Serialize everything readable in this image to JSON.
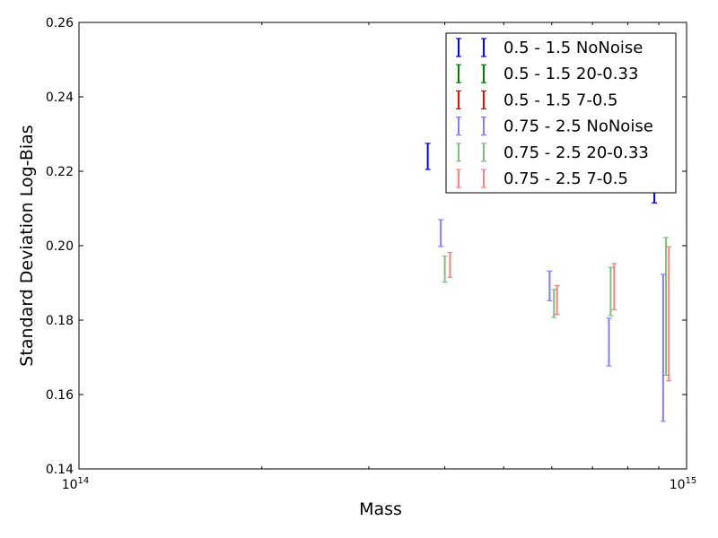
{
  "chart_data": {
    "type": "scatter",
    "xlabel": "Mass",
    "ylabel": "Standard Deviation Log-Bias",
    "x_scale": "log",
    "xlim": [
      100000000000000.0,
      1000000000000000.0
    ],
    "ylim": [
      0.14,
      0.26
    ],
    "x_ticks": [
      {
        "value": 100000000000000.0,
        "base": "10",
        "exp": "14"
      },
      {
        "value": 1000000000000000.0,
        "base": "10",
        "exp": "15"
      }
    ],
    "y_ticks": [
      "0.14",
      "0.16",
      "0.18",
      "0.20",
      "0.22",
      "0.24",
      "0.26"
    ],
    "grid": false,
    "legend_position": "top-right",
    "series": [
      {
        "name": "0.5 - 1.5 NoNoise",
        "color": "#0000ff",
        "opacity": 1.0,
        "points": [
          {
            "x": 375000000000000.0,
            "low": 0.2205,
            "high": 0.2275
          },
          {
            "x": 885000000000000.0,
            "low": 0.2115,
            "high": 0.2155
          }
        ]
      },
      {
        "name": "0.5 - 1.5 20-0.33",
        "color": "#008000",
        "opacity": 1.0,
        "points": []
      },
      {
        "name": "0.5 - 1.5 7-0.5",
        "color": "#ff0000",
        "opacity": 1.0,
        "points": []
      },
      {
        "name": "0.75 - 2.5 NoNoise",
        "color": "#0000ff",
        "opacity": 0.5,
        "points": [
          {
            "x": 394000000000000.0,
            "low": 0.1998,
            "high": 0.207
          },
          {
            "x": 595000000000000.0,
            "low": 0.1852,
            "high": 0.1932
          },
          {
            "x": 745000000000000.0,
            "low": 0.1677,
            "high": 0.1805
          },
          {
            "x": 915000000000000.0,
            "low": 0.1528,
            "high": 0.1923
          }
        ]
      },
      {
        "name": "0.75 - 2.5 20-0.33",
        "color": "#008000",
        "opacity": 0.5,
        "points": [
          {
            "x": 400000000000000.0,
            "low": 0.1902,
            "high": 0.1972
          },
          {
            "x": 605000000000000.0,
            "low": 0.1807,
            "high": 0.1882
          },
          {
            "x": 750000000000000.0,
            "low": 0.1812,
            "high": 0.1942
          },
          {
            "x": 925000000000000.0,
            "low": 0.1652,
            "high": 0.2022
          }
        ]
      },
      {
        "name": "0.75 - 2.5 7-0.5",
        "color": "#ff0000",
        "opacity": 0.5,
        "points": [
          {
            "x": 408000000000000.0,
            "low": 0.1915,
            "high": 0.1982
          },
          {
            "x": 612000000000000.0,
            "low": 0.1815,
            "high": 0.1893
          },
          {
            "x": 760000000000000.0,
            "low": 0.1828,
            "high": 0.1952
          },
          {
            "x": 935000000000000.0,
            "low": 0.1637,
            "high": 0.1997
          }
        ]
      }
    ]
  }
}
